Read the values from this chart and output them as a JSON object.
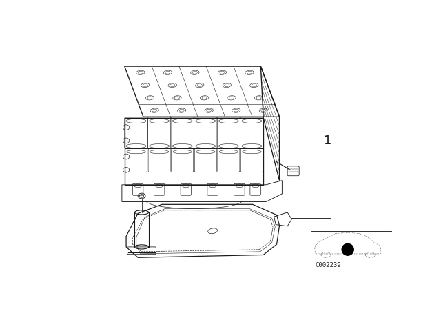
{
  "background_color": "#ffffff",
  "line_color": "#1a1a1a",
  "part_number": "1",
  "reference_code": "C002239",
  "fig_width": 6.4,
  "fig_height": 4.48,
  "dpi": 100
}
